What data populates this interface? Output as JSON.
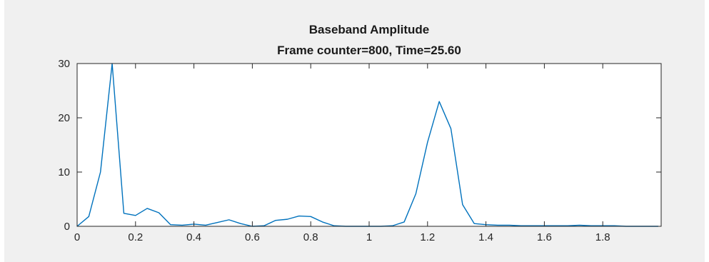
{
  "chart_data": {
    "type": "line",
    "title": "Baseband Amplitude",
    "subtitle": "Frame counter=800, Time=25.60",
    "xlabel": "",
    "ylabel": "",
    "xlim": [
      0,
      2
    ],
    "ylim": [
      0,
      30
    ],
    "xticks": [
      0,
      0.2,
      0.4,
      0.6,
      0.8,
      1,
      1.2,
      1.4,
      1.6,
      1.8
    ],
    "xtick_labels": [
      "0",
      "0.2",
      "0.4",
      "0.6",
      "0.8",
      "1",
      "1.2",
      "1.4",
      "1.6",
      "1.8"
    ],
    "yticks": [
      0,
      10,
      20,
      30
    ],
    "ytick_labels": [
      "0",
      "10",
      "20",
      "30"
    ],
    "grid": false,
    "line_color": "#0072bd",
    "series": [
      {
        "x": [
          0,
          0.04,
          0.08,
          0.12,
          0.16,
          0.2,
          0.24,
          0.28,
          0.32,
          0.36,
          0.4,
          0.44,
          0.48,
          0.52,
          0.56,
          0.6,
          0.64,
          0.68,
          0.72,
          0.76,
          0.8,
          0.84,
          0.88,
          0.92,
          0.96,
          1.0,
          1.04,
          1.08,
          1.12,
          1.16,
          1.2,
          1.24,
          1.28,
          1.32,
          1.36,
          1.4,
          1.44,
          1.48,
          1.52,
          1.56,
          1.6,
          1.64,
          1.68,
          1.72,
          1.76,
          1.8,
          1.84,
          1.88,
          1.92,
          1.96,
          1.99
        ],
        "values": [
          0,
          1.8,
          10,
          30,
          2.4,
          2.0,
          3.3,
          2.5,
          0.3,
          0.2,
          0.4,
          0.2,
          0.7,
          1.2,
          0.5,
          0.0,
          0.1,
          1.1,
          1.3,
          1.9,
          1.8,
          0.8,
          0.1,
          0.0,
          0.0,
          0.0,
          0.0,
          0.1,
          0.8,
          6,
          15.5,
          23,
          18,
          4,
          0.5,
          0.3,
          0.2,
          0.2,
          0.1,
          0.1,
          0.1,
          0.1,
          0.1,
          0.2,
          0.1,
          0.1,
          0.1,
          0.0,
          0.0,
          0.0,
          0.0
        ]
      }
    ]
  }
}
